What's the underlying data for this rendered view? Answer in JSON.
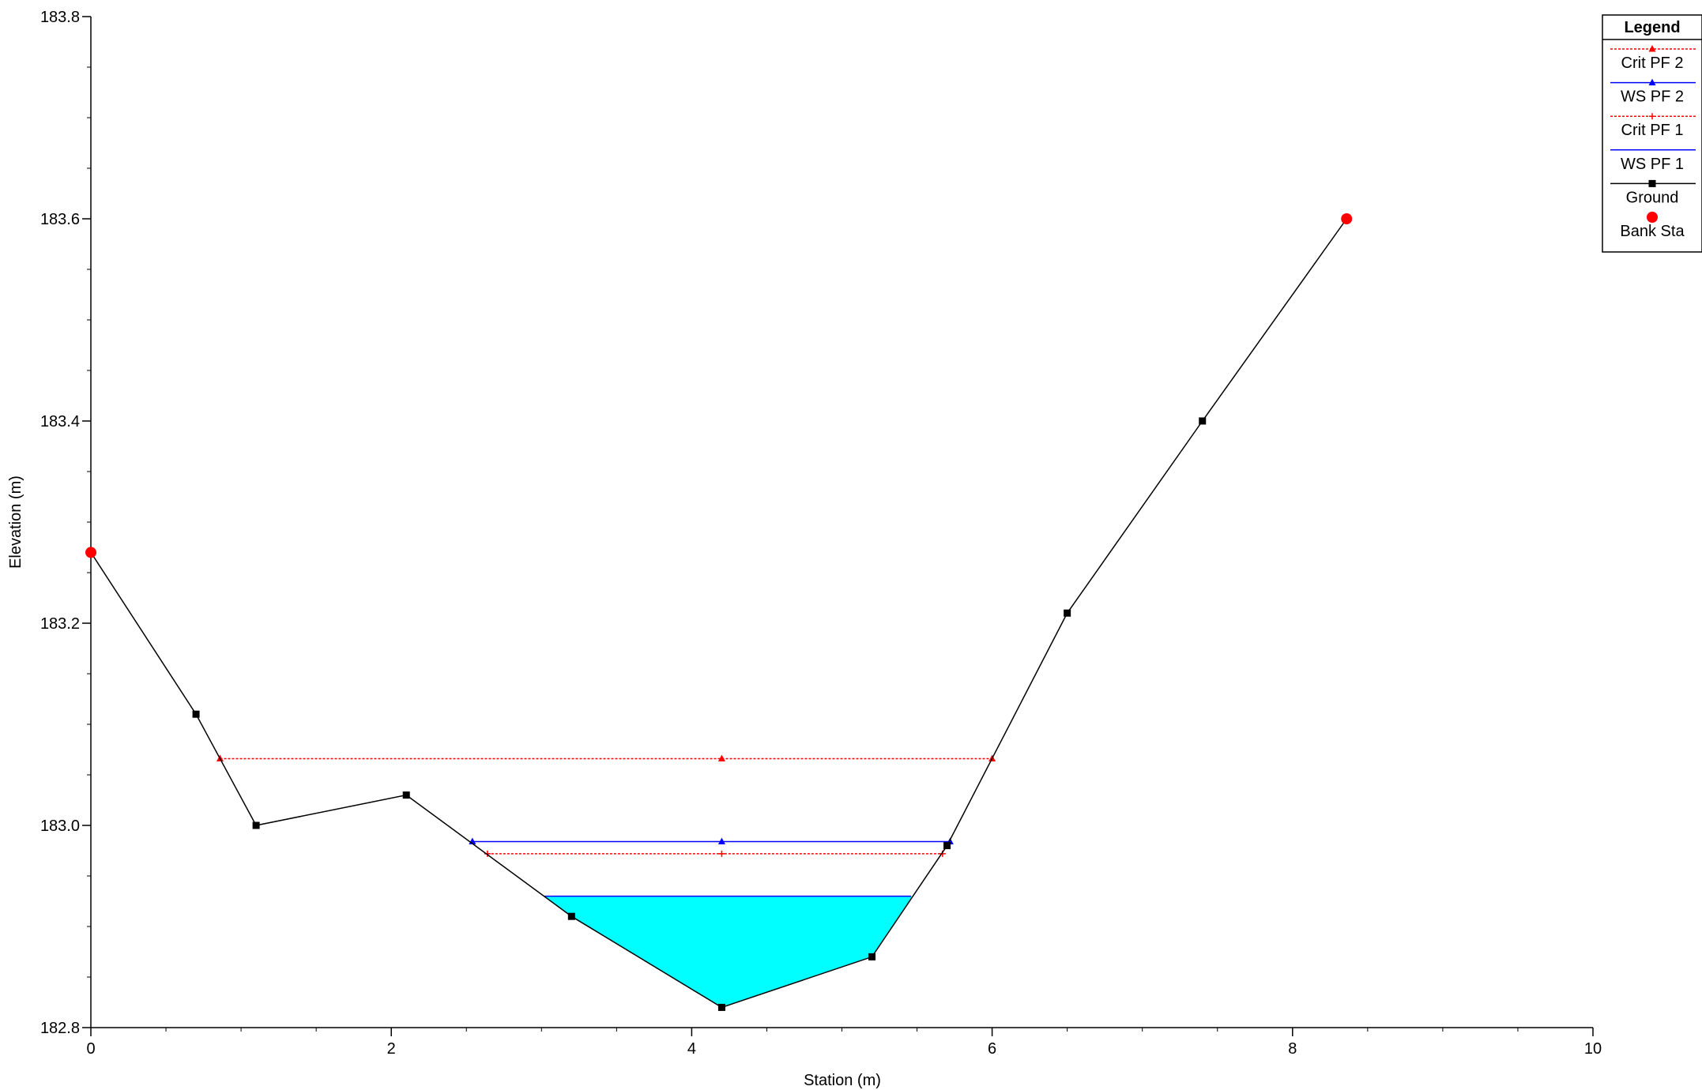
{
  "chart_data": {
    "type": "line",
    "title": "",
    "xlabel": "Station (m)",
    "ylabel": "Elevation (m)",
    "xlim": [
      0,
      10
    ],
    "ylim": [
      182.8,
      183.8
    ],
    "x_ticks": [
      "0",
      "2",
      "4",
      "6",
      "8",
      "10"
    ],
    "y_ticks": [
      "182.8",
      "183.0",
      "183.2",
      "183.4",
      "183.6",
      "183.8"
    ],
    "grid": false,
    "legend": {
      "title": "Legend",
      "placement": "top-right",
      "entries": [
        {
          "label": "Crit PF 2",
          "color": "#ff0000",
          "style": "dotted",
          "marker": "triangle"
        },
        {
          "label": "WS PF 2",
          "color": "#0000ff",
          "style": "solid",
          "marker": "triangle"
        },
        {
          "label": "Crit PF 1",
          "color": "#ff0000",
          "style": "dotted",
          "marker": "plus"
        },
        {
          "label": "WS PF 1",
          "color": "#0000ff",
          "style": "solid",
          "marker": "none"
        },
        {
          "label": "Ground",
          "color": "#000000",
          "style": "solid",
          "marker": "square"
        },
        {
          "label": "Bank Sta",
          "color": "#ff0000",
          "style": "none",
          "marker": "circle"
        }
      ]
    },
    "series": [
      {
        "name": "Ground",
        "x": [
          0,
          0.7,
          1.1,
          2.1,
          3.2,
          4.2,
          5.2,
          5.7,
          6.5,
          7.4,
          8.36
        ],
        "y": [
          183.27,
          183.11,
          183.0,
          183.03,
          182.91,
          182.82,
          182.87,
          182.98,
          183.21,
          183.4,
          183.6
        ]
      },
      {
        "name": "Bank Sta",
        "x": [
          0,
          8.36
        ],
        "y": [
          183.27,
          183.6
        ]
      },
      {
        "name": "Crit PF 2",
        "x": [
          0.86,
          4.2,
          6.0
        ],
        "y": [
          183.066,
          183.066,
          183.066
        ]
      },
      {
        "name": "WS PF 2",
        "x": [
          2.54,
          4.2,
          5.72
        ],
        "y": [
          182.984,
          182.984,
          182.984
        ]
      },
      {
        "name": "Crit PF 1",
        "x": [
          2.64,
          4.2,
          5.67
        ],
        "y": [
          182.972,
          182.972,
          182.972
        ]
      },
      {
        "name": "WS PF 1",
        "x": [
          3.02,
          5.46
        ],
        "y": [
          182.93,
          182.93
        ]
      }
    ],
    "fill_color": "#00ffff"
  }
}
